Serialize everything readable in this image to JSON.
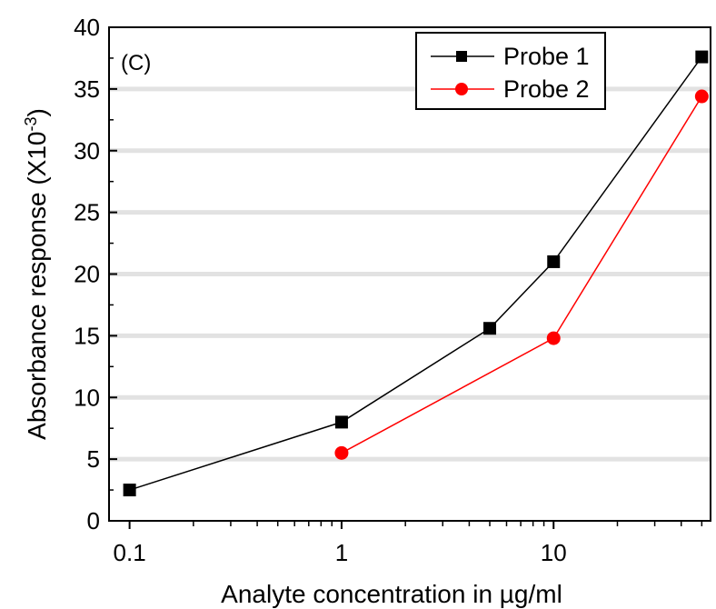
{
  "chart_data": {
    "type": "line",
    "panel_label": "(C)",
    "xlabel_prefix": "Analyte concentration in ",
    "xlabel_unit": "µg/ml",
    "ylabel_main": "Absorbance response (X10",
    "ylabel_exp": "-3",
    "ylabel_close": ")",
    "x_scale": "log",
    "xlim": [
      0.08,
      55
    ],
    "ylim": [
      0,
      40
    ],
    "x_ticks": [
      0.1,
      1,
      10
    ],
    "x_tick_labels": [
      "0.1",
      "1",
      "10"
    ],
    "y_ticks": [
      0,
      5,
      10,
      15,
      20,
      25,
      30,
      35,
      40
    ],
    "y_tick_labels": [
      "0",
      "5",
      "10",
      "15",
      "20",
      "25",
      "30",
      "35",
      "40"
    ],
    "grid": "horizontal",
    "legend_position": "top-right",
    "series": [
      {
        "name": "Probe 1",
        "color": "#000000",
        "marker": "square",
        "x": [
          0.1,
          1,
          5,
          10,
          50
        ],
        "y": [
          2.5,
          8.0,
          15.6,
          21.0,
          37.6
        ]
      },
      {
        "name": "Probe 2",
        "color": "#ff0000",
        "marker": "circle",
        "x": [
          1,
          10,
          50
        ],
        "y": [
          5.5,
          14.8,
          34.4
        ]
      }
    ]
  }
}
